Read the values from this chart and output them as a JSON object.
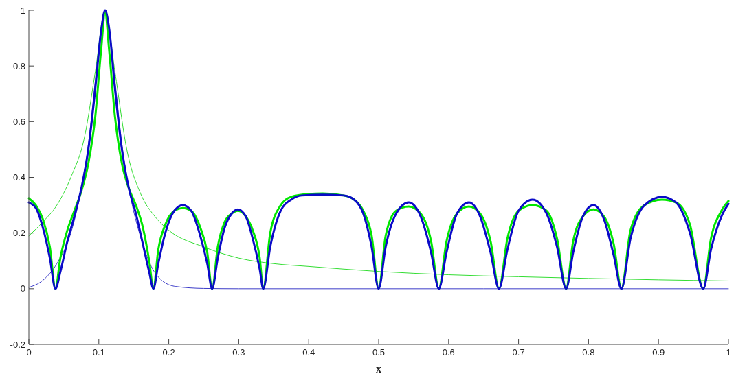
{
  "chart_data": {
    "type": "line",
    "xlabel": "x",
    "xlim": [
      0,
      1
    ],
    "xticks": [
      0,
      0.1,
      0.2,
      0.3,
      0.4,
      0.5,
      0.6,
      0.7,
      0.8,
      0.9,
      1
    ],
    "ylim": [
      -0.2,
      1
    ],
    "yticks": [
      -0.2,
      0,
      0.2,
      0.4,
      0.6,
      0.8,
      1
    ],
    "grid": false,
    "series": [
      {
        "color": "#33dd33",
        "x": [
          0,
          0.02,
          0.04,
          0.06,
          0.08,
          0.095,
          0.109,
          0.123,
          0.14,
          0.16,
          0.18,
          0.2,
          0.25,
          0.3,
          0.35,
          0.4,
          0.5,
          0.6,
          0.7,
          0.8,
          0.9,
          1
        ],
        "values": [
          0.19,
          0.24,
          0.3,
          0.4,
          0.55,
          0.78,
          1,
          0.78,
          0.5,
          0.34,
          0.26,
          0.21,
          0.15,
          0.11,
          0.09,
          0.08,
          0.062,
          0.05,
          0.043,
          0.037,
          0.032,
          0.028
        ]
      },
      {
        "color": "#3c3cc8",
        "x": [
          0,
          0.02,
          0.04,
          0.06,
          0.075,
          0.085,
          0.095,
          0.103,
          0.109,
          0.115,
          0.123,
          0.133,
          0.143,
          0.158,
          0.175,
          0.19,
          0.21,
          0.25,
          0.3,
          1
        ],
        "values": [
          0.005,
          0.03,
          0.09,
          0.2,
          0.36,
          0.52,
          0.75,
          0.93,
          1,
          0.93,
          0.75,
          0.52,
          0.36,
          0.2,
          0.08,
          0.03,
          0.008,
          0.001,
          0,
          0
        ]
      },
      {
        "color": "#00e600",
        "x": [
          0,
          0.01,
          0.02,
          0.03,
          0.038,
          0.045,
          0.055,
          0.065,
          0.075,
          0.085,
          0.095,
          0.103,
          0.109,
          0.115,
          0.123,
          0.133,
          0.143,
          0.153,
          0.163,
          0.172,
          0.178,
          0.185,
          0.195,
          0.208,
          0.22,
          0.232,
          0.245,
          0.255,
          0.262,
          0.27,
          0.28,
          0.29,
          0.299,
          0.31,
          0.32,
          0.33,
          0.335,
          0.345,
          0.36,
          0.375,
          0.4,
          0.42,
          0.45,
          0.465,
          0.478,
          0.49,
          0.5,
          0.51,
          0.525,
          0.543,
          0.56,
          0.575,
          0.586,
          0.597,
          0.612,
          0.629,
          0.645,
          0.66,
          0.672,
          0.684,
          0.7,
          0.72,
          0.74,
          0.755,
          0.768,
          0.778,
          0.792,
          0.807,
          0.822,
          0.836,
          0.847,
          0.86,
          0.88,
          0.905,
          0.925,
          0.945,
          0.964,
          0.975,
          0.99,
          1
        ],
        "values": [
          0.325,
          0.3,
          0.25,
          0.15,
          0,
          0.11,
          0.21,
          0.28,
          0.35,
          0.45,
          0.62,
          0.85,
          0.99,
          0.85,
          0.62,
          0.45,
          0.36,
          0.3,
          0.22,
          0.1,
          0,
          0.14,
          0.23,
          0.28,
          0.29,
          0.28,
          0.22,
          0.13,
          0,
          0.15,
          0.24,
          0.27,
          0.28,
          0.26,
          0.21,
          0.11,
          0,
          0.2,
          0.3,
          0.33,
          0.34,
          0.342,
          0.335,
          0.32,
          0.28,
          0.19,
          0,
          0.19,
          0.28,
          0.295,
          0.27,
          0.17,
          0,
          0.17,
          0.27,
          0.295,
          0.27,
          0.17,
          0,
          0.18,
          0.28,
          0.3,
          0.28,
          0.18,
          0,
          0.17,
          0.26,
          0.285,
          0.26,
          0.16,
          0,
          0.21,
          0.3,
          0.32,
          0.31,
          0.23,
          0,
          0.18,
          0.28,
          0.315
        ]
      },
      {
        "color": "#0a0ac8",
        "x": [
          0,
          0.01,
          0.02,
          0.03,
          0.038,
          0.045,
          0.055,
          0.065,
          0.075,
          0.085,
          0.095,
          0.103,
          0.109,
          0.115,
          0.123,
          0.133,
          0.143,
          0.153,
          0.163,
          0.172,
          0.178,
          0.185,
          0.195,
          0.208,
          0.22,
          0.232,
          0.245,
          0.255,
          0.262,
          0.27,
          0.28,
          0.29,
          0.299,
          0.31,
          0.32,
          0.33,
          0.335,
          0.345,
          0.36,
          0.375,
          0.39,
          0.42,
          0.45,
          0.465,
          0.478,
          0.49,
          0.5,
          0.51,
          0.525,
          0.543,
          0.56,
          0.575,
          0.586,
          0.597,
          0.612,
          0.629,
          0.645,
          0.66,
          0.672,
          0.684,
          0.7,
          0.72,
          0.74,
          0.755,
          0.768,
          0.778,
          0.792,
          0.807,
          0.822,
          0.836,
          0.847,
          0.86,
          0.88,
          0.905,
          0.925,
          0.945,
          0.964,
          0.975,
          0.99,
          1
        ],
        "values": [
          0.31,
          0.29,
          0.22,
          0.11,
          0,
          0.06,
          0.17,
          0.26,
          0.36,
          0.5,
          0.72,
          0.92,
          1,
          0.93,
          0.72,
          0.5,
          0.36,
          0.27,
          0.16,
          0.06,
          0,
          0.09,
          0.2,
          0.28,
          0.3,
          0.28,
          0.19,
          0.09,
          0,
          0.11,
          0.22,
          0.27,
          0.285,
          0.26,
          0.18,
          0.07,
          0,
          0.15,
          0.28,
          0.32,
          0.335,
          0.338,
          0.335,
          0.32,
          0.27,
          0.15,
          0,
          0.15,
          0.27,
          0.31,
          0.26,
          0.13,
          0,
          0.13,
          0.27,
          0.31,
          0.26,
          0.13,
          0,
          0.14,
          0.28,
          0.32,
          0.27,
          0.15,
          0,
          0.13,
          0.26,
          0.3,
          0.25,
          0.12,
          0,
          0.18,
          0.3,
          0.33,
          0.31,
          0.2,
          0,
          0.14,
          0.26,
          0.305
        ]
      }
    ]
  }
}
